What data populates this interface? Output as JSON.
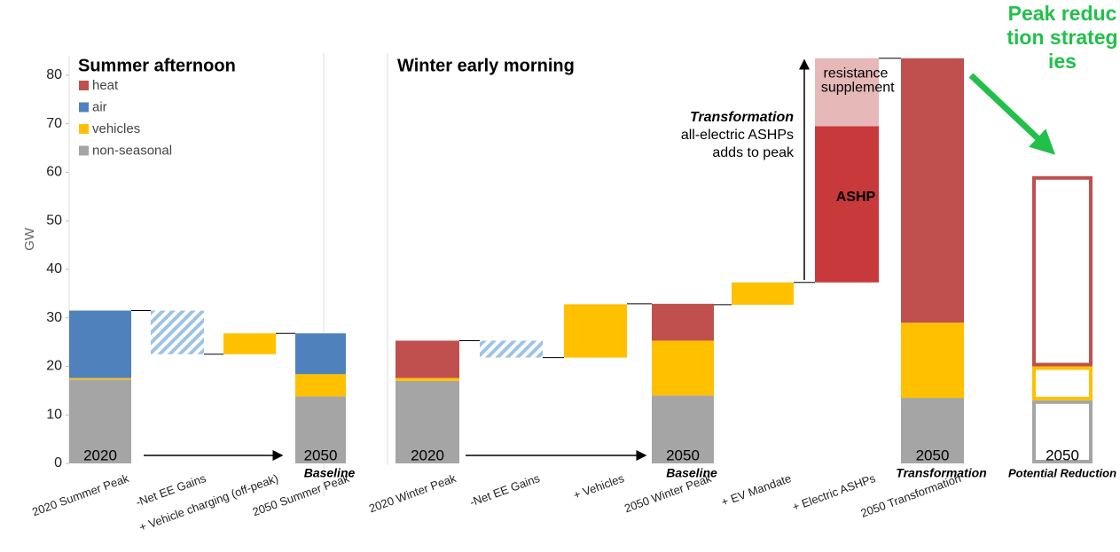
{
  "chart_data": {
    "type": "waterfall",
    "y_label": "GW",
    "ylim": [
      0,
      84
    ],
    "yticks": [
      0,
      10,
      20,
      30,
      40,
      50,
      60,
      70,
      80
    ],
    "series": [
      {
        "name": "heat",
        "color": "#c0504d"
      },
      {
        "name": "air",
        "color": "#4f81bd"
      },
      {
        "name": "vehicles",
        "color": "#ffc000"
      },
      {
        "name": "non-seasonal",
        "color": "#a5a5a5"
      }
    ],
    "panels": [
      {
        "title": "Summer afternoon"
      },
      {
        "title": "Winter early morning"
      }
    ],
    "bars": [
      {
        "category": "2020 Summer Peak",
        "panel": 0,
        "label": "2020",
        "segments": [
          {
            "series": 3,
            "value": 17.3
          },
          {
            "series": 2,
            "value": 0.3
          },
          {
            "series": 1,
            "value": 13.9
          }
        ]
      },
      {
        "category": "-Net  EE Gains",
        "panel": 0,
        "start": 22.5,
        "segments": [
          {
            "pattern": "hatched",
            "color": "#9dc3e6",
            "value": 9
          }
        ]
      },
      {
        "category": "+ Vehicle charging (off-peak)",
        "panel": 0,
        "start": 22.5,
        "segments": [
          {
            "series": 2,
            "value": 4.3
          }
        ]
      },
      {
        "category": "2050 Summer Peak",
        "panel": 0,
        "label": "2050",
        "sublabel": "Baseline",
        "segments": [
          {
            "series": 3,
            "value": 13.8
          },
          {
            "series": 2,
            "value": 4.6
          },
          {
            "series": 1,
            "value": 8.4
          }
        ]
      },
      {
        "category": "2020 Winter Peak",
        "panel": 1,
        "label": "2020",
        "segments": [
          {
            "series": 3,
            "value": 17
          },
          {
            "series": 2,
            "value": 0.6
          },
          {
            "series": 0,
            "value": 7.7
          }
        ]
      },
      {
        "category": "-Net EE Gains",
        "panel": 1,
        "start": 21.8,
        "segments": [
          {
            "pattern": "hatched",
            "color": "#9dc3e6",
            "value": 3.5
          }
        ]
      },
      {
        "category": "+ Vehicles",
        "panel": 1,
        "start": 21.8,
        "segments": [
          {
            "series": 2,
            "value": 11
          }
        ]
      },
      {
        "category": "2050 Winter Peak",
        "panel": 1,
        "label": "2050",
        "sublabel": "Baseline",
        "segments": [
          {
            "series": 3,
            "value": 14
          },
          {
            "series": 2,
            "value": 11.3
          },
          {
            "series": 0,
            "value": 7.6
          }
        ]
      },
      {
        "category": "+ EV Mandate",
        "panel": 1,
        "start": 32.7,
        "segments": [
          {
            "series": 2,
            "value": 4.6
          }
        ]
      },
      {
        "category": "+ Electric ASHPs",
        "panel": 1,
        "start": 37.3,
        "segments": [
          {
            "name": "ASHP",
            "color": "#c8393b",
            "value": 32.2
          },
          {
            "name": "resistance supplement",
            "color": "#e6b8b7",
            "value": 14
          }
        ]
      },
      {
        "category": "2050 Transformation",
        "panel": 1,
        "label": "2050",
        "sublabel": "Transformation",
        "segments": [
          {
            "series": 3,
            "value": 13.5
          },
          {
            "series": 2,
            "value": 15.5
          },
          {
            "series": 0,
            "value": 54.5
          }
        ]
      },
      {
        "label": "2050",
        "sublabel": "Potential Reduction",
        "outline": true,
        "segments": [
          {
            "series": 3,
            "value": 13
          },
          {
            "series": 2,
            "value": 7
          },
          {
            "series": 0,
            "value": 39.2
          }
        ]
      }
    ],
    "annotations": [
      "Transformation",
      "all-electric ASHPs",
      "adds to peak"
    ],
    "callout": "Peak reduction strategies"
  }
}
